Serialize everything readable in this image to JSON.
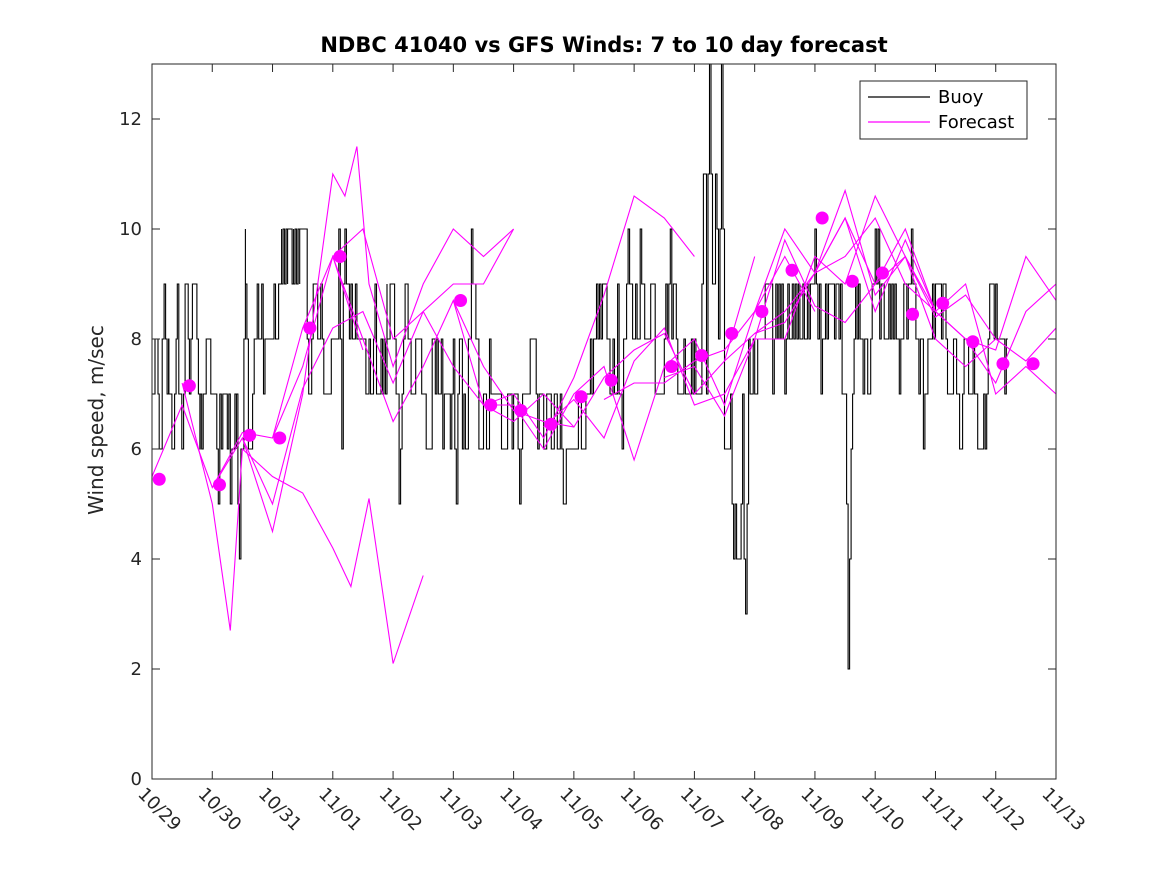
{
  "chart_data": {
    "type": "line",
    "title": "NDBC 41040 vs GFS Winds: 7 to 10 day forecast",
    "xlabel": "",
    "ylabel": "Wind speed, m/sec",
    "xlim": [
      0,
      15
    ],
    "ylim": [
      0,
      13
    ],
    "y_ticks": [
      0,
      2,
      4,
      6,
      8,
      10,
      12
    ],
    "x_tick_labels": [
      "10/29",
      "10/30",
      "10/31",
      "11/01",
      "11/02",
      "11/03",
      "11/04",
      "11/05",
      "11/06",
      "11/07",
      "11/08",
      "11/09",
      "11/10",
      "11/11",
      "11/12",
      "11/13"
    ],
    "legend": {
      "position": "top-right",
      "entries": [
        "Buoy",
        "Forecast"
      ]
    },
    "colors": {
      "buoy": "#000000",
      "forecast": "#ff00ff",
      "axis": "#262626"
    },
    "buoy_anchors": [
      [
        0.0,
        7
      ],
      [
        0.05,
        8
      ],
      [
        0.12,
        6
      ],
      [
        0.2,
        8
      ],
      [
        0.28,
        7
      ],
      [
        0.35,
        6
      ],
      [
        0.42,
        8
      ],
      [
        0.5,
        6
      ],
      [
        0.55,
        9
      ],
      [
        0.62,
        7
      ],
      [
        0.72,
        10
      ],
      [
        0.8,
        6
      ],
      [
        0.9,
        8
      ],
      [
        1.0,
        7
      ],
      [
        1.1,
        6
      ],
      [
        1.2,
        7
      ],
      [
        1.3,
        6
      ],
      [
        1.4,
        7
      ],
      [
        1.45,
        4
      ],
      [
        1.55,
        9
      ],
      [
        1.62,
        6
      ],
      [
        1.72,
        8
      ],
      [
        1.85,
        8
      ],
      [
        1.95,
        8
      ],
      [
        2.05,
        8
      ],
      [
        2.15,
        9
      ],
      [
        2.25,
        10
      ],
      [
        2.35,
        9
      ],
      [
        2.45,
        10
      ],
      [
        2.55,
        9
      ],
      [
        2.6,
        7
      ],
      [
        2.7,
        9
      ],
      [
        2.8,
        8
      ],
      [
        2.9,
        7
      ],
      [
        3.0,
        8
      ],
      [
        3.1,
        9
      ],
      [
        3.15,
        6
      ],
      [
        3.2,
        10
      ],
      [
        3.3,
        8
      ],
      [
        3.4,
        9
      ],
      [
        3.5,
        8
      ],
      [
        3.6,
        7
      ],
      [
        3.7,
        8
      ],
      [
        3.8,
        7
      ],
      [
        3.9,
        8
      ],
      [
        4.0,
        9
      ],
      [
        4.1,
        6
      ],
      [
        4.2,
        9
      ],
      [
        4.3,
        7
      ],
      [
        4.4,
        8
      ],
      [
        4.5,
        7
      ],
      [
        4.6,
        6
      ],
      [
        4.7,
        8
      ],
      [
        4.8,
        7
      ],
      [
        4.9,
        6
      ],
      [
        5.0,
        7
      ],
      [
        5.05,
        5
      ],
      [
        5.1,
        8
      ],
      [
        5.2,
        6
      ],
      [
        5.3,
        9
      ],
      [
        5.4,
        7
      ],
      [
        5.5,
        6
      ],
      [
        5.6,
        7
      ],
      [
        5.7,
        7
      ],
      [
        5.8,
        6
      ],
      [
        5.9,
        7
      ],
      [
        6.0,
        7
      ],
      [
        6.1,
        6
      ],
      [
        6.2,
        7
      ],
      [
        6.3,
        8
      ],
      [
        6.4,
        7
      ],
      [
        6.5,
        6
      ],
      [
        6.6,
        7
      ],
      [
        6.7,
        6
      ],
      [
        6.8,
        6
      ],
      [
        6.85,
        5
      ],
      [
        6.9,
        6
      ],
      [
        7.0,
        6
      ],
      [
        7.1,
        7
      ],
      [
        7.2,
        6
      ],
      [
        7.3,
        7
      ],
      [
        7.4,
        8
      ],
      [
        7.5,
        9
      ],
      [
        7.6,
        7
      ],
      [
        7.7,
        8
      ],
      [
        7.8,
        7
      ],
      [
        7.9,
        9
      ],
      [
        8.0,
        8
      ],
      [
        8.1,
        9
      ],
      [
        8.2,
        8
      ],
      [
        8.3,
        9
      ],
      [
        8.4,
        7
      ],
      [
        8.5,
        8
      ],
      [
        8.6,
        9
      ],
      [
        8.7,
        8
      ],
      [
        8.8,
        7
      ],
      [
        8.9,
        7
      ],
      [
        9.0,
        8
      ],
      [
        9.1,
        7
      ],
      [
        9.15,
        12
      ],
      [
        9.2,
        8
      ],
      [
        9.25,
        13
      ],
      [
        9.3,
        9
      ],
      [
        9.35,
        11
      ],
      [
        9.4,
        8
      ],
      [
        9.45,
        13
      ],
      [
        9.5,
        7
      ],
      [
        9.55,
        6
      ],
      [
        9.6,
        7
      ],
      [
        9.65,
        4
      ],
      [
        9.7,
        5
      ],
      [
        9.75,
        3
      ],
      [
        9.8,
        6
      ],
      [
        9.85,
        3
      ],
      [
        9.9,
        8
      ],
      [
        10.0,
        7
      ],
      [
        10.1,
        8
      ],
      [
        10.2,
        9
      ],
      [
        10.3,
        8
      ],
      [
        10.4,
        9
      ],
      [
        10.5,
        8
      ],
      [
        10.6,
        9
      ],
      [
        10.7,
        8
      ],
      [
        10.8,
        9
      ],
      [
        10.9,
        8
      ],
      [
        11.0,
        9
      ],
      [
        11.1,
        8
      ],
      [
        11.2,
        9
      ],
      [
        11.3,
        8
      ],
      [
        11.4,
        9
      ],
      [
        11.5,
        7
      ],
      [
        11.55,
        3
      ],
      [
        11.6,
        6
      ],
      [
        11.65,
        8
      ],
      [
        11.7,
        9
      ],
      [
        11.8,
        8
      ],
      [
        11.9,
        8
      ],
      [
        12.0,
        9
      ],
      [
        12.1,
        9
      ],
      [
        12.2,
        8
      ],
      [
        12.3,
        9
      ],
      [
        12.4,
        8
      ],
      [
        12.5,
        9
      ],
      [
        12.6,
        9
      ],
      [
        12.7,
        8
      ],
      [
        12.8,
        7
      ],
      [
        12.9,
        8
      ],
      [
        13.0,
        8
      ],
      [
        13.1,
        9
      ],
      [
        13.2,
        7
      ],
      [
        13.3,
        8
      ],
      [
        13.4,
        6
      ],
      [
        13.5,
        8
      ],
      [
        13.6,
        7
      ],
      [
        13.7,
        7
      ],
      [
        13.75,
        5
      ],
      [
        13.8,
        7
      ],
      [
        13.9,
        8
      ],
      [
        14.0,
        9
      ],
      [
        14.1,
        7
      ],
      [
        14.2,
        8
      ]
    ],
    "forecast_series": [
      {
        "x": [
          0.0,
          0.5,
          1.0,
          1.5,
          2.0,
          2.5,
          3.0,
          3.5
        ],
        "y": [
          5.5,
          6.8,
          5.3,
          6.3,
          6.2,
          8.2,
          9.5,
          7.8
        ]
      },
      {
        "x": [
          0.5,
          1.0,
          1.3,
          1.5,
          2.0,
          2.5,
          3.0,
          3.3,
          3.6,
          4.0,
          4.5
        ],
        "y": [
          7.2,
          5.0,
          2.7,
          6.0,
          5.5,
          5.2,
          4.2,
          3.5,
          5.1,
          2.1,
          3.7
        ]
      },
      {
        "x": [
          1.0,
          1.5,
          2.0,
          2.5,
          3.0,
          3.2,
          3.4,
          3.6,
          4.0,
          4.5,
          5.0,
          5.5,
          6.0
        ],
        "y": [
          5.3,
          6.2,
          4.5,
          7.0,
          11.0,
          10.6,
          11.5,
          9.0,
          7.5,
          9.0,
          10.0,
          9.5,
          10.0
        ]
      },
      {
        "x": [
          1.5,
          2.0,
          2.5,
          3.0,
          3.5,
          4.0,
          4.5,
          5.0,
          5.5,
          6.0
        ],
        "y": [
          6.2,
          5.0,
          7.1,
          8.2,
          8.5,
          7.2,
          8.5,
          9.0,
          9.0,
          10.0
        ]
      },
      {
        "x": [
          2.0,
          2.5,
          3.0,
          3.5,
          4.0,
          4.5,
          5.0,
          5.5,
          6.0,
          6.5,
          7.0
        ],
        "y": [
          6.2,
          7.5,
          9.5,
          8.0,
          6.5,
          7.5,
          8.7,
          6.8,
          6.5,
          7.0,
          6.4
        ]
      },
      {
        "x": [
          3.0,
          3.5,
          4.0,
          4.5,
          5.0,
          5.5,
          6.0,
          6.5,
          7.0,
          7.5,
          8.0,
          8.5,
          9.0
        ],
        "y": [
          9.5,
          10.0,
          8.0,
          8.5,
          7.5,
          6.8,
          7.0,
          6.2,
          7.3,
          8.8,
          10.6,
          10.2,
          9.5
        ]
      },
      {
        "x": [
          5.0,
          5.5,
          6.0,
          6.5,
          7.0,
          7.5,
          8.0,
          8.5,
          9.0,
          9.5,
          10.0
        ],
        "y": [
          8.7,
          7.5,
          6.7,
          6.5,
          6.4,
          7.3,
          7.8,
          8.1,
          7.0,
          7.6,
          9.5
        ]
      },
      {
        "x": [
          5.5,
          6.0,
          6.5,
          7.0,
          7.5,
          8.0,
          8.5,
          9.0,
          9.5,
          10.0,
          10.5,
          11.0
        ],
        "y": [
          6.8,
          6.8,
          6.0,
          7.0,
          7.5,
          5.8,
          7.5,
          8.0,
          6.8,
          8.5,
          9.5,
          8.5
        ]
      },
      {
        "x": [
          6.5,
          7.0,
          7.5,
          8.0,
          8.5,
          9.0,
          9.5,
          10.0,
          10.5,
          11.0,
          11.5,
          12.0
        ],
        "y": [
          6.4,
          6.9,
          6.2,
          7.6,
          8.2,
          6.8,
          7.0,
          8.0,
          9.8,
          8.6,
          8.3,
          9.0
        ]
      },
      {
        "x": [
          7.5,
          8.0,
          8.5,
          9.0,
          9.5,
          10.0,
          10.5,
          11.0,
          11.5,
          12.0,
          12.5,
          13.0
        ],
        "y": [
          6.9,
          7.2,
          7.2,
          7.6,
          7.8,
          8.5,
          10.0,
          9.2,
          10.7,
          8.8,
          9.5,
          8.5
        ]
      },
      {
        "x": [
          8.5,
          9.0,
          9.5,
          10.0,
          10.5,
          11.0,
          11.5,
          12.0,
          12.5,
          13.0,
          13.5,
          14.0
        ],
        "y": [
          7.3,
          7.5,
          6.6,
          8.0,
          8.0,
          9.5,
          9.0,
          10.6,
          9.5,
          8.0,
          7.5,
          8.0
        ]
      },
      {
        "x": [
          9.5,
          10.0,
          10.5,
          11.0,
          11.5,
          12.0,
          12.5,
          13.0,
          13.5,
          14.0,
          14.5,
          15.0
        ],
        "y": [
          7.6,
          8.1,
          8.3,
          9.2,
          9.5,
          10.2,
          9.0,
          8.5,
          8.0,
          7.2,
          8.5,
          9.0
        ]
      },
      {
        "x": [
          10.0,
          10.5,
          11.0,
          11.5,
          12.0,
          12.5,
          13.0,
          13.5,
          14.0,
          14.5,
          15.0
        ],
        "y": [
          8.1,
          8.5,
          9.2,
          10.2,
          9.0,
          10.0,
          8.5,
          8.0,
          7.8,
          9.5,
          8.7
        ]
      },
      {
        "x": [
          11.0,
          11.5,
          12.0,
          12.5,
          13.0,
          13.5,
          14.0,
          14.5,
          15.0
        ],
        "y": [
          9.2,
          10.2,
          8.5,
          9.8,
          8.5,
          9.0,
          7.0,
          7.5,
          7.0
        ]
      },
      {
        "x": [
          12.0,
          12.5,
          13.0,
          13.5,
          14.0,
          14.5,
          15.0
        ],
        "y": [
          9.0,
          9.5,
          8.4,
          8.8,
          8.0,
          7.6,
          8.2
        ]
      }
    ],
    "forecast_points": {
      "x": [
        0.12,
        0.62,
        1.12,
        1.62,
        2.12,
        2.62,
        3.12,
        5.12,
        5.62,
        6.12,
        6.62,
        7.12,
        7.62,
        8.62,
        9.12,
        9.62,
        10.12,
        10.62,
        11.12,
        11.62,
        12.12,
        12.62,
        13.12,
        13.62,
        14.12,
        14.62
      ],
      "y": [
        5.45,
        7.15,
        5.35,
        6.25,
        6.2,
        8.2,
        9.5,
        8.7,
        6.8,
        6.7,
        6.45,
        6.95,
        7.25,
        7.5,
        7.7,
        8.1,
        8.5,
        9.25,
        10.2,
        9.05,
        9.2,
        8.45,
        8.65,
        7.95,
        7.55,
        7.55
      ]
    }
  }
}
